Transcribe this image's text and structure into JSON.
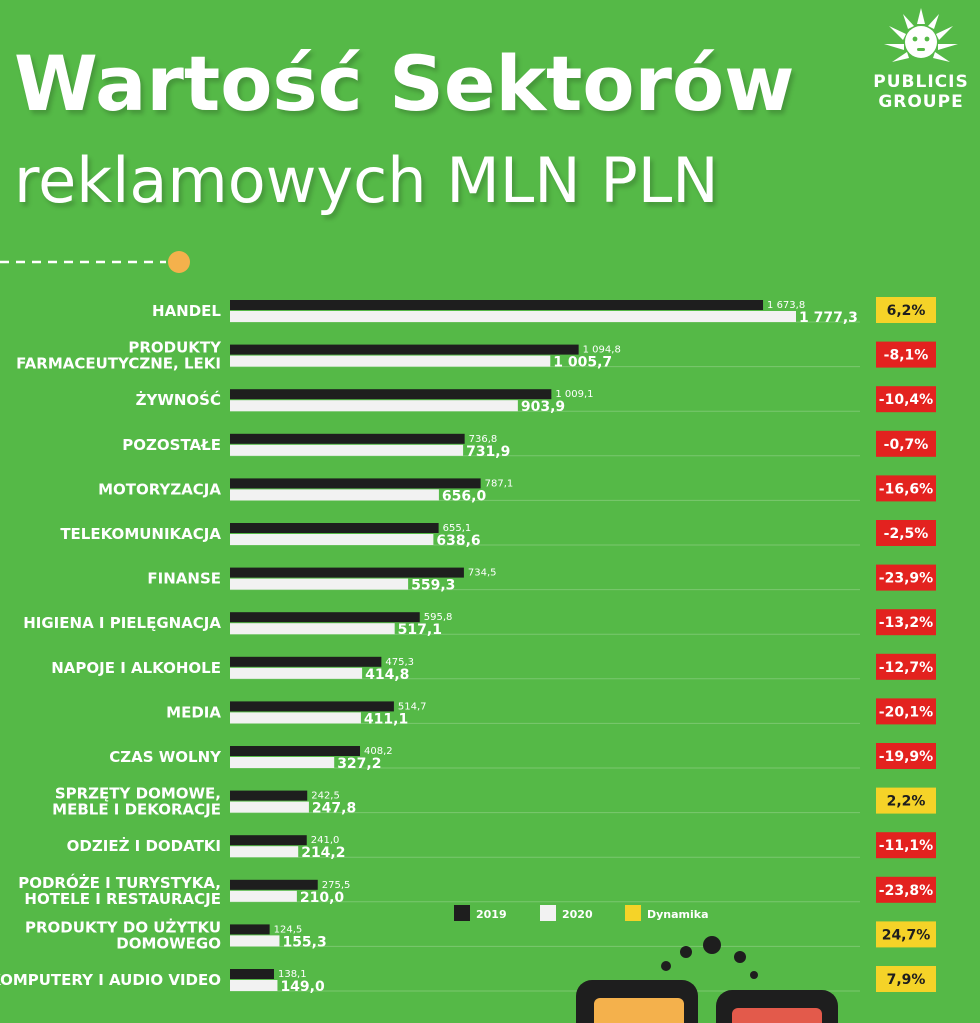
{
  "header": {
    "title_line1": "Wartość Sektorów",
    "title_line2": "reklamowych MLN PLN"
  },
  "brand": {
    "logo_icon": "lion-head-icon",
    "line1": "PUBLICIS",
    "line2": "GROUPE"
  },
  "colors": {
    "background": "#55b947",
    "bar_2019": "#1e1e1e",
    "bar_2020": "#f2f2f2",
    "dynamics_positive": "#f5d328",
    "dynamics_negative": "#e3221f",
    "accent_dot": "#f4b14c"
  },
  "legend": {
    "placement": "bottom-center",
    "items": [
      {
        "label": "2019",
        "color": "#1e1e1e"
      },
      {
        "label": "2020",
        "color": "#f2f2f2"
      },
      {
        "label": "Dynamika",
        "color": "#f5d328"
      }
    ]
  },
  "chart_data": {
    "type": "bar",
    "orientation": "horizontal",
    "title": "Wartość Sektorów reklamowych MLN PLN",
    "categories": [
      [
        "HANDEL"
      ],
      [
        "PRODUKTY",
        "FARMACEUTYCZNE, LEKI"
      ],
      [
        "ŻYWNOŚĆ"
      ],
      [
        "POZOSTAŁE"
      ],
      [
        "MOTORYZACJA"
      ],
      [
        "TELEKOMUNIKACJA"
      ],
      [
        "FINANSE"
      ],
      [
        "HIGIENA I PIELĘGNACJA"
      ],
      [
        "NAPOJE I ALKOHOLE"
      ],
      [
        "MEDIA"
      ],
      [
        "CZAS WOLNY"
      ],
      [
        "SPRZĘTY DOMOWE,",
        "MEBLE I DEKORACJE"
      ],
      [
        "ODZIEŻ I DODATKI"
      ],
      [
        "PODRÓŻE I TURYSTYKA,",
        "HOTELE I RESTAURACJE"
      ],
      [
        "PRODUKTY DO UŻYTKU",
        "DOMOWEGO"
      ],
      [
        "KOMPUTERY I AUDIO VIDEO"
      ]
    ],
    "series": [
      {
        "name": "2019",
        "values": [
          1673.8,
          1094.8,
          1009.1,
          736.8,
          787.1,
          655.1,
          734.5,
          595.8,
          475.3,
          514.7,
          408.2,
          242.5,
          241.0,
          275.5,
          124.5,
          138.1
        ],
        "labels": [
          "1 673,8",
          "1 094,8",
          "1 009,1",
          "736,8",
          "787,1",
          "655,1",
          "734,5",
          "595,8",
          "475,3",
          "514,7",
          "408,2",
          "242,5",
          "241,0",
          "275,5",
          "124,5",
          "138,1"
        ]
      },
      {
        "name": "2020",
        "values": [
          1777.3,
          1005.7,
          903.9,
          731.9,
          656.0,
          638.6,
          559.3,
          517.1,
          414.8,
          411.1,
          327.2,
          247.8,
          214.2,
          210.0,
          155.3,
          149.0
        ],
        "labels": [
          "1 777,3",
          "1 005,7",
          "903,9",
          "731,9",
          "656,0",
          "638,6",
          "559,3",
          "517,1",
          "414,8",
          "411,1",
          "327,2",
          "247,8",
          "214,2",
          "210,0",
          "155,3",
          "149,0"
        ]
      },
      {
        "name": "Dynamika",
        "values": [
          6.2,
          -8.1,
          -10.4,
          -0.7,
          -16.6,
          -2.5,
          -23.9,
          -13.2,
          -12.7,
          -20.1,
          -19.9,
          2.2,
          -11.1,
          -23.8,
          24.7,
          7.9
        ],
        "labels": [
          "6,2%",
          "-8,1%",
          "-10,4%",
          "-0,7%",
          "-16,6%",
          "-2,5%",
          "-23,9%",
          "-13,2%",
          "-12,7%",
          "-20,1%",
          "-19,9%",
          "2,2%",
          "-11,1%",
          "-23,8%",
          "24,7%",
          "7,9%"
        ]
      }
    ],
    "xlim": [
      0,
      1777.3
    ],
    "grid": false
  }
}
